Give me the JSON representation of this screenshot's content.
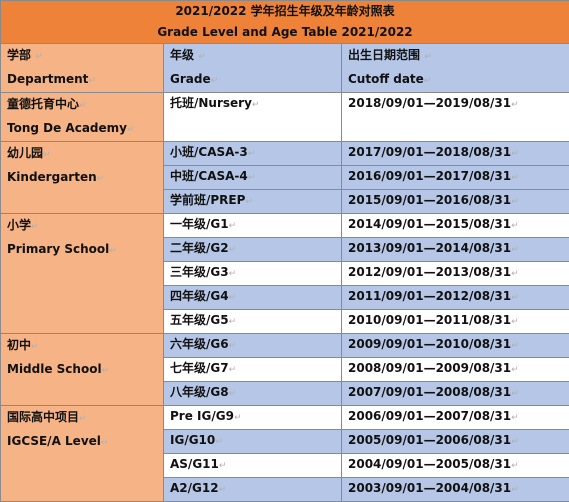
{
  "title": {
    "zh": "2021/2022 学年招生年级及年龄对照表",
    "en": "Grade Level and Age Table 2021/2022"
  },
  "headers": {
    "department_zh": "学部",
    "department_en": "Department",
    "grade_zh": "年级",
    "grade_en": "Grade",
    "cutoff_zh": "出生日期范围",
    "cutoff_en": "Cutoff date"
  },
  "mark": "↵",
  "sections": [
    {
      "dept_zh": "童德托育中心",
      "dept_en": "Tong De Academy",
      "rows": [
        {
          "grade": "托班/Nursery",
          "cutoff": "2018/09/01—2019/08/31",
          "shade": "white"
        }
      ]
    },
    {
      "dept_zh": "幼儿园",
      "dept_en": "Kindergarten",
      "rows": [
        {
          "grade": "小班/CASA-3",
          "cutoff": "2017/09/01—2018/08/31",
          "shade": "blue"
        },
        {
          "grade": "中班/CASA-4",
          "cutoff": "2016/09/01—2017/08/31",
          "shade": "blue"
        },
        {
          "grade": "学前班/PREP",
          "cutoff": "2015/09/01—2016/08/31",
          "shade": "blue"
        }
      ]
    },
    {
      "dept_zh": "小学",
      "dept_en": "Primary School",
      "rows": [
        {
          "grade": "一年级/G1",
          "cutoff": "2014/09/01—2015/08/31",
          "shade": "white"
        },
        {
          "grade": "二年级/G2",
          "cutoff": "2013/09/01—2014/08/31",
          "shade": "blue"
        },
        {
          "grade": "三年级/G3",
          "cutoff": "2012/09/01—2013/08/31",
          "shade": "white"
        },
        {
          "grade": "四年级/G4",
          "cutoff": "2011/09/01—2012/08/31",
          "shade": "blue"
        },
        {
          "grade": "五年级/G5",
          "cutoff": "2010/09/01—2011/08/31",
          "shade": "white"
        }
      ]
    },
    {
      "dept_zh": "初中",
      "dept_en": "Middle School",
      "rows": [
        {
          "grade": "六年级/G6",
          "cutoff": "2009/09/01—2010/08/31",
          "shade": "blue"
        },
        {
          "grade": "七年级/G7",
          "cutoff": "2008/09/01—2009/08/31",
          "shade": "white"
        },
        {
          "grade": "八年级/G8",
          "cutoff": "2007/09/01—2008/08/31",
          "shade": "blue"
        }
      ]
    },
    {
      "dept_zh": "国际高中项目",
      "dept_en": "IGCSE/A Level",
      "rows": [
        {
          "grade": "Pre IG/G9",
          "cutoff": "2006/09/01—2007/08/31",
          "shade": "white"
        },
        {
          "grade": "IG/G10",
          "cutoff": "2005/09/01—2006/08/31",
          "shade": "blue"
        },
        {
          "grade": "AS/G11",
          "cutoff": "2004/09/01—2005/08/31",
          "shade": "white"
        },
        {
          "grade": "A2/G12",
          "cutoff": "2003/09/01—2004/08/31",
          "shade": "blue"
        }
      ]
    }
  ]
}
